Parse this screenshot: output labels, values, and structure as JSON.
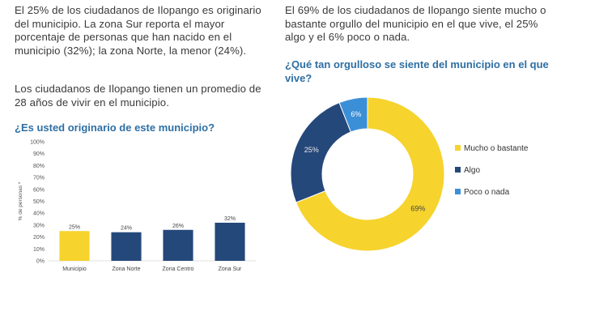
{
  "left": {
    "paragraph1": "El 25% de los ciudadanos de Ilopango es originario del municipio. La zona Sur reporta el mayor porcentaje de personas que han nacido en el municipio (32%); la zona Norte, la menor (24%).",
    "paragraph2": "Los ciudadanos de Ilopango tienen un promedio de 28 años de vivir en el municipio."
  },
  "right": {
    "paragraph": "El 69% de los ciudadanos de Ilopango siente mucho o bastante orgullo del municipio en el que vive, el 25% algo y el 6% poco o nada."
  },
  "colors": {
    "yellow": "#f6d32d",
    "navy": "#25487b",
    "blue": "#3b8fd6",
    "title": "#2e6fa3"
  },
  "chart_data": [
    {
      "type": "bar",
      "title": "¿Es usted originario de este municipio?",
      "ylabel": "% de personas *",
      "ylim": [
        0,
        100
      ],
      "yticks": [
        "0%",
        "10%",
        "20%",
        "30%",
        "40%",
        "50%",
        "60%",
        "70%",
        "80%",
        "90%",
        "100%"
      ],
      "categories": [
        "Municipio",
        "Zona Norte",
        "Zona Centro",
        "Zona Sur"
      ],
      "values": [
        25,
        24,
        26,
        32
      ],
      "data_labels": [
        "25%",
        "24%",
        "26%",
        "32%"
      ],
      "bar_colors": [
        "#f6d32d",
        "#25487b",
        "#25487b",
        "#25487b"
      ],
      "grid": false
    },
    {
      "type": "pie",
      "title": "¿Qué tan orgulloso se siente del municipio en el que vive?",
      "donut": true,
      "categories": [
        "Mucho o bastante",
        "Algo",
        "Poco o nada"
      ],
      "values": [
        69,
        25,
        6
      ],
      "data_labels": [
        "69%",
        "25%",
        "6%"
      ],
      "colors": [
        "#f6d32d",
        "#25487b",
        "#3b8fd6"
      ],
      "legend": "right"
    }
  ]
}
